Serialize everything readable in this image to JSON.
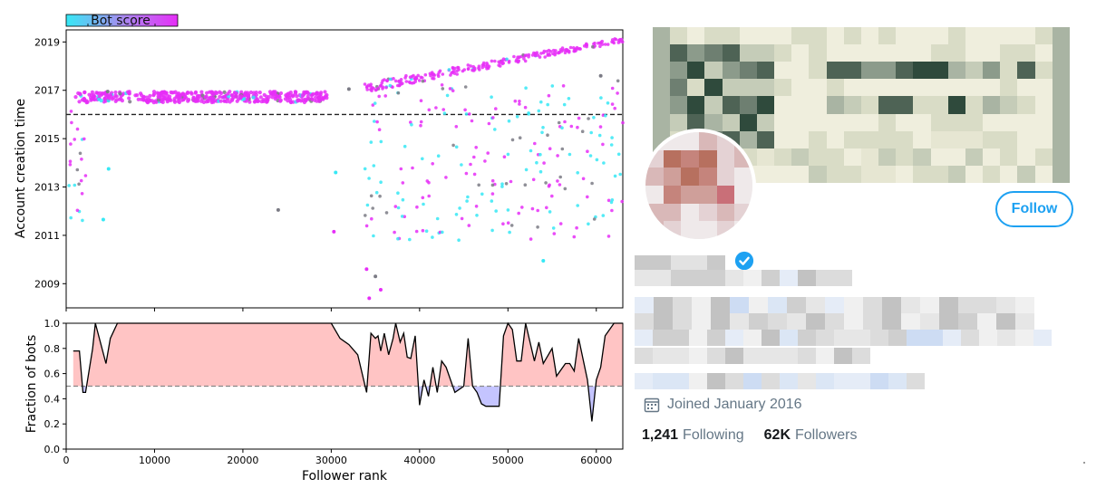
{
  "chart_data": [
    {
      "type": "scatter",
      "colorbar_label": "Bot score",
      "ylabel": "Account creation time",
      "xlim": [
        0,
        63000
      ],
      "ylim": [
        2008,
        2019.5
      ],
      "y_ticks": [
        "2009",
        "2011",
        "2013",
        "2015",
        "2017",
        "2019"
      ],
      "reference_line_y": 2016.0,
      "colors": {
        "low": "#36e8f5",
        "mid": "#7b7b85",
        "high": "#e62ef7"
      },
      "clusters": [
        {
          "x": [
            1000,
            29500
          ],
          "y": [
            2016.5,
            2016.95
          ],
          "score": "high",
          "count": 430
        },
        {
          "x": [
            33800,
            63000
          ],
          "y_start": [
            2016.9,
            2017.3
          ],
          "y_end": [
            2019.0,
            2019.2
          ],
          "score": "high",
          "count": 240
        },
        {
          "x": [
            33800,
            63000
          ],
          "y": [
            2010.8,
            2017.4
          ],
          "score": "mixed",
          "count": 230
        },
        {
          "x": [
            300,
            2200
          ],
          "y": [
            2011.4,
            2016.2
          ],
          "score": "mixed",
          "count": 22
        }
      ],
      "points": [
        {
          "x": 24000,
          "y": 2012.05,
          "score": "mid"
        },
        {
          "x": 4200,
          "y": 2011.65,
          "score": "low"
        },
        {
          "x": 4800,
          "y": 2013.75,
          "score": "low"
        },
        {
          "x": 30300,
          "y": 2011.15,
          "score": "high"
        },
        {
          "x": 30500,
          "y": 2013.6,
          "score": "low"
        },
        {
          "x": 34300,
          "y": 2008.4,
          "score": "high"
        },
        {
          "x": 34000,
          "y": 2009.6,
          "score": "high"
        },
        {
          "x": 35000,
          "y": 2009.3,
          "score": "mid"
        },
        {
          "x": 35600,
          "y": 2008.75,
          "score": "high"
        },
        {
          "x": 54000,
          "y": 2009.95,
          "score": "low"
        },
        {
          "x": 4700,
          "y": 2016.95,
          "score": "mid"
        },
        {
          "x": 32000,
          "y": 2017.05,
          "score": "mid"
        },
        {
          "x": 60500,
          "y": 2017.6,
          "score": "mid"
        }
      ]
    },
    {
      "type": "area",
      "ylabel": "Fraction of bots",
      "xlabel": "Follower rank",
      "xlim": [
        0,
        63000
      ],
      "ylim": [
        0.0,
        1.0
      ],
      "x_ticks": [
        "0",
        "10000",
        "20000",
        "30000",
        "40000",
        "50000",
        "60000"
      ],
      "y_ticks": [
        "0.0",
        "0.2",
        "0.4",
        "0.6",
        "0.8",
        "1.0"
      ],
      "threshold": 0.5,
      "fill_above_color": "#ffc4c4",
      "fill_below_color": "#c4c4ff",
      "x": [
        800,
        1500,
        1900,
        2200,
        3000,
        3300,
        4500,
        5000,
        5800,
        30000,
        31000,
        32000,
        33000,
        34000,
        34500,
        35000,
        35300,
        35600,
        36000,
        36500,
        37000,
        37300,
        37800,
        38200,
        38600,
        39000,
        39500,
        40000,
        40500,
        41000,
        41500,
        42000,
        42500,
        43000,
        44000,
        45000,
        45500,
        46000,
        46500,
        47000,
        47500,
        48000,
        49000,
        49500,
        50000,
        50500,
        51000,
        51500,
        52000,
        53000,
        53500,
        54000,
        55000,
        55500,
        56500,
        57000,
        57500,
        58000,
        59000,
        59500,
        60000,
        60500,
        61000,
        62000,
        63000
      ],
      "y": [
        0.78,
        0.78,
        0.45,
        0.45,
        0.8,
        1.0,
        0.68,
        0.88,
        1.0,
        1.0,
        0.88,
        0.83,
        0.75,
        0.45,
        0.92,
        0.88,
        0.9,
        0.78,
        0.92,
        0.75,
        0.88,
        1.0,
        0.85,
        0.92,
        0.73,
        0.72,
        0.9,
        0.35,
        0.55,
        0.42,
        0.65,
        0.45,
        0.7,
        0.65,
        0.45,
        0.5,
        0.88,
        0.5,
        0.45,
        0.36,
        0.34,
        0.34,
        0.34,
        0.9,
        1.0,
        0.95,
        0.7,
        0.7,
        1.0,
        0.7,
        0.85,
        0.68,
        0.8,
        0.58,
        0.68,
        0.68,
        0.62,
        0.88,
        0.55,
        0.22,
        0.55,
        0.65,
        0.9,
        1.0,
        1.0
      ]
    }
  ],
  "profile": {
    "follow_label": "Follow",
    "joined_text": "Joined January 2016",
    "following_count": "1,241",
    "following_label": "Following",
    "followers_count": "62K",
    "followers_label": "Followers",
    "accent_color": "#1da1f2"
  }
}
